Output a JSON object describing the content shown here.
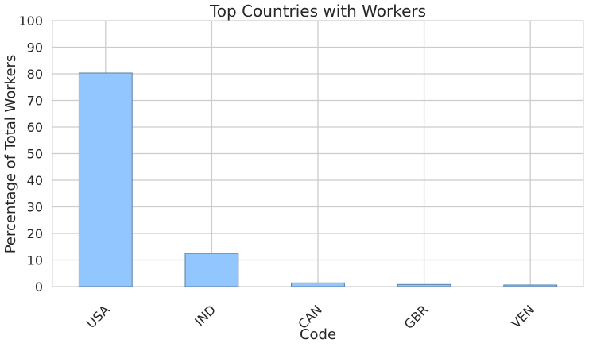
{
  "chart_data": {
    "type": "bar",
    "title": "Top Countries with Workers",
    "xlabel": "Code",
    "ylabel": "Percentage of Total Workers",
    "categories": [
      "USA",
      "IND",
      "CAN",
      "GBR",
      "VEN"
    ],
    "values": [
      80.3,
      12.5,
      1.4,
      0.8,
      0.6
    ],
    "ylim": [
      0,
      100
    ],
    "yticks": [
      "0",
      "10",
      "20",
      "30",
      "40",
      "50",
      "60",
      "70",
      "80",
      "90",
      "100"
    ],
    "grid": true,
    "colors": {
      "bar_fill": "#92c6ff",
      "bar_edge": "#5a7fa5",
      "grid": "#cccccc",
      "text": "#262626"
    }
  }
}
